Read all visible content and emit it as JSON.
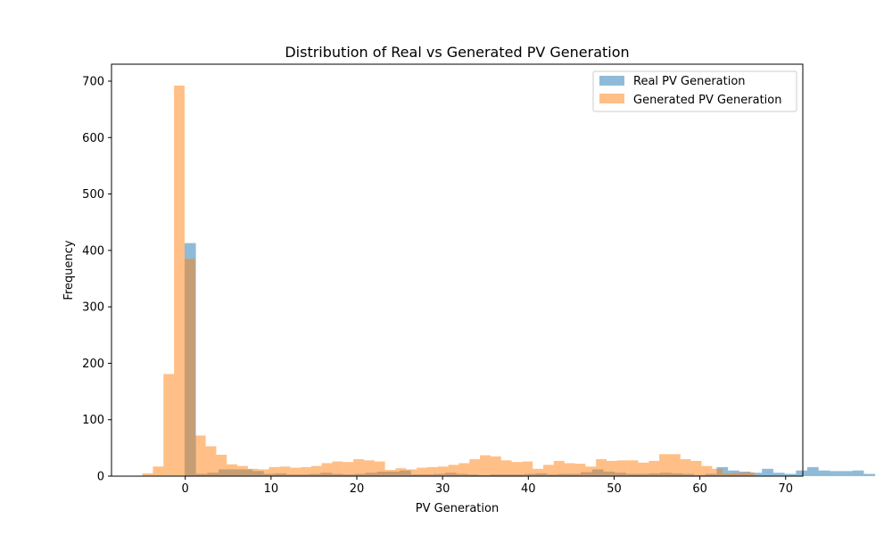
{
  "chart_data": {
    "type": "bar",
    "title": "Distribution of Real vs Generated PV Generation",
    "xlabel": "PV Generation",
    "ylabel": "Frequency",
    "xlim": [
      -8.6,
      72.0
    ],
    "ylim": [
      0,
      730
    ],
    "xticks": [
      0,
      10,
      20,
      30,
      40,
      50,
      60,
      70
    ],
    "yticks": [
      0,
      100,
      200,
      300,
      400,
      500,
      600,
      700
    ],
    "grid": false,
    "legend_position": "upper right",
    "series": [
      {
        "name": "Real PV Generation",
        "color": "#1f77b4",
        "opacity": 0.5,
        "bin_start": -0.08,
        "bin_width": 1.32,
        "counts": [
          413,
          4,
          6,
          12,
          12,
          12,
          9,
          4,
          5,
          3,
          3,
          4,
          6,
          4,
          3,
          4,
          6,
          8,
          8,
          10,
          3,
          3,
          4,
          6,
          4,
          3,
          2,
          3,
          3,
          3,
          4,
          5,
          3,
          4,
          4,
          7,
          12,
          8,
          6,
          4,
          4,
          5,
          6,
          5,
          4,
          2,
          4,
          16,
          10,
          8,
          6,
          13,
          6,
          4,
          10,
          16,
          10,
          9,
          9,
          10,
          4
        ]
      },
      {
        "name": "Generated PV Generation",
        "color": "#ff7f0e",
        "opacity": 0.5,
        "bin_start": -5.0,
        "bin_width": 1.23,
        "counts": [
          5,
          17,
          181,
          692,
          385,
          72,
          53,
          38,
          21,
          18,
          13,
          12,
          16,
          17,
          15,
          16,
          18,
          23,
          26,
          25,
          30,
          28,
          26,
          11,
          14,
          12,
          15,
          16,
          17,
          20,
          23,
          30,
          37,
          35,
          28,
          25,
          26,
          13,
          20,
          27,
          23,
          22,
          17,
          30,
          27,
          28,
          28,
          24,
          27,
          39,
          39,
          30,
          27,
          18,
          13,
          5,
          6,
          7
        ]
      }
    ]
  }
}
